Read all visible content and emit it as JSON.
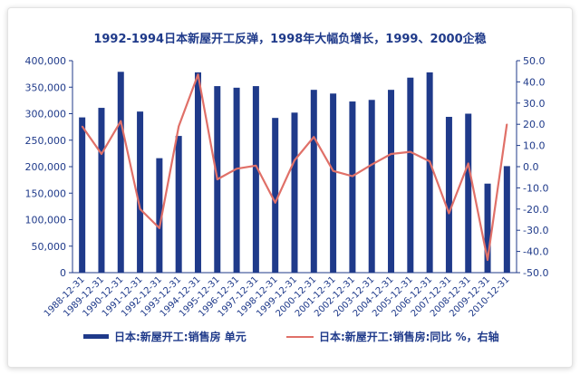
{
  "chart_data": {
    "type": "bar+line",
    "title": "1992-1994日本新屋开工反弹，1998年大幅负增长，1999、2000企稳",
    "categories": [
      "1988-12-31",
      "1989-12-31",
      "1990-12-31",
      "1991-12-31",
      "1992-12-31",
      "1993-12-31",
      "1994-12-31",
      "1995-12-31",
      "1996-12-31",
      "1997-12-31",
      "1998-12-31",
      "1999-12-31",
      "2000-12-31",
      "2001-12-31",
      "2002-12-31",
      "2003-12-31",
      "2004-12-31",
      "2005-12-31",
      "2006-12-31",
      "2007-12-31",
      "2008-12-31",
      "2009-12-31",
      "2010-12-31"
    ],
    "series": [
      {
        "name": "日本:新屋开工:销售房 单元",
        "type": "bar",
        "axis": "left",
        "color": "#1f3a8a",
        "values": [
          293000,
          311000,
          379000,
          304000,
          216000,
          258000,
          378000,
          352000,
          349000,
          352000,
          292000,
          302000,
          345000,
          338000,
          323000,
          326000,
          345000,
          368000,
          378000,
          294000,
          300000,
          168000,
          201000
        ]
      },
      {
        "name": "日本:新屋开工:销售房:同比 %，右轴",
        "type": "line",
        "axis": "right",
        "color": "#e07068",
        "values": [
          19,
          6,
          21.5,
          -20,
          -29,
          19,
          43.5,
          -6,
          -1,
          0.5,
          -17,
          3,
          14,
          -2,
          -4.5,
          1,
          6,
          7,
          2.5,
          -22,
          1.5,
          -44,
          20
        ]
      }
    ],
    "y_left": {
      "min": 0,
      "max": 400000,
      "step": 50000,
      "ticks": [
        "0",
        "50,000",
        "100,000",
        "150,000",
        "200,000",
        "250,000",
        "300,000",
        "350,000",
        "400,000"
      ]
    },
    "y_right": {
      "min": -50,
      "max": 50,
      "step": 10,
      "ticks": [
        "-50.0",
        "-40.0",
        "-30.0",
        "-20.0",
        "-10.0",
        "0.0",
        "10.0",
        "20.0",
        "30.0",
        "40.0",
        "50.0"
      ]
    },
    "grid": false,
    "legend": "bottom"
  },
  "colors": {
    "axis": "#1f3a8a",
    "bar": "#1f3a8a",
    "line": "#e07068"
  }
}
